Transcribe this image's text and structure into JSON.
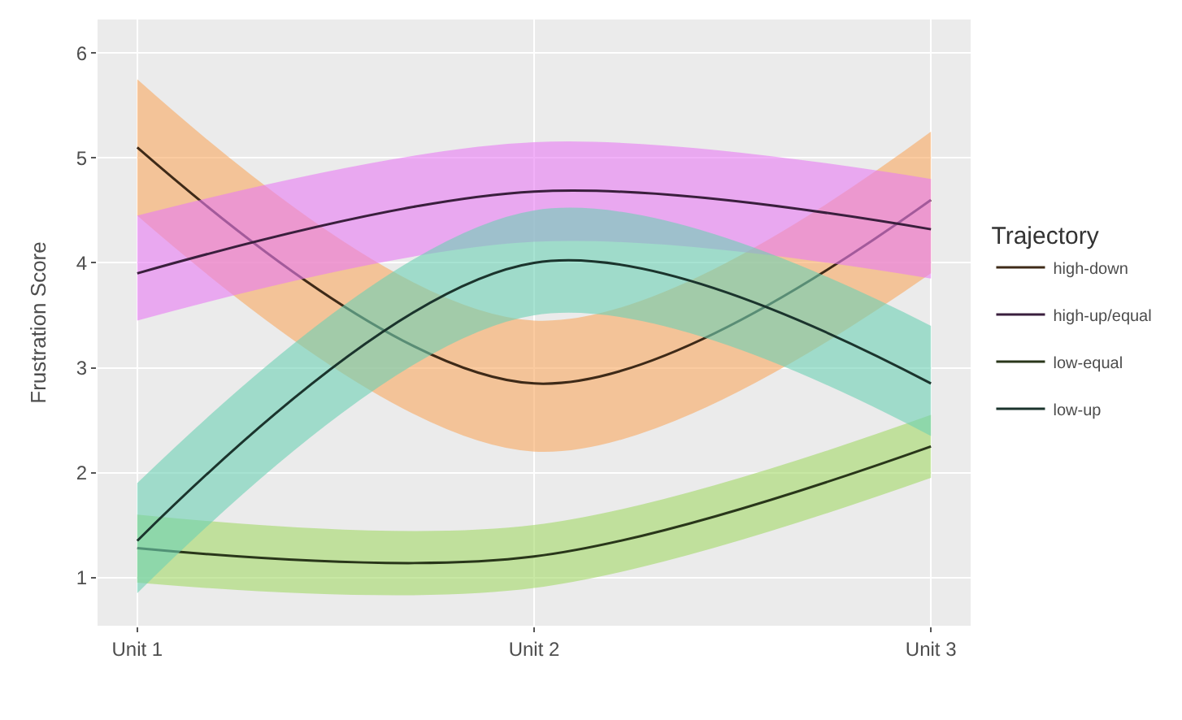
{
  "chart_data": {
    "type": "line",
    "ylabel": "Frustration Score",
    "legend_title": "Trajectory",
    "categories": [
      "Unit 1",
      "Unit 2",
      "Unit 3"
    ],
    "ylim": [
      0.54,
      6.32
    ],
    "yticks": [
      1,
      2,
      3,
      4,
      5,
      6
    ],
    "grid": true,
    "legend": "right",
    "series": [
      {
        "name": "high-down",
        "color": "#3e2a18",
        "values": [
          5.1,
          2.85,
          4.6
        ],
        "lower": [
          4.45,
          2.2,
          3.9
        ],
        "upper": [
          5.75,
          3.45,
          5.25
        ]
      },
      {
        "name": "high-up/equal",
        "color": "#3a1f3d",
        "values": [
          3.9,
          4.68,
          4.32
        ],
        "lower": [
          3.45,
          4.2,
          3.85
        ],
        "upper": [
          4.45,
          5.15,
          4.8
        ]
      },
      {
        "name": "low-equal",
        "color": "#29361a",
        "values": [
          1.28,
          1.2,
          2.25
        ],
        "lower": [
          0.95,
          0.9,
          1.95
        ],
        "upper": [
          1.6,
          1.5,
          2.55
        ]
      },
      {
        "name": "low-up",
        "color": "#1b342d",
        "values": [
          1.35,
          4.0,
          2.85
        ],
        "lower": [
          0.85,
          3.5,
          2.35
        ],
        "upper": [
          1.9,
          4.5,
          3.4
        ]
      }
    ]
  }
}
